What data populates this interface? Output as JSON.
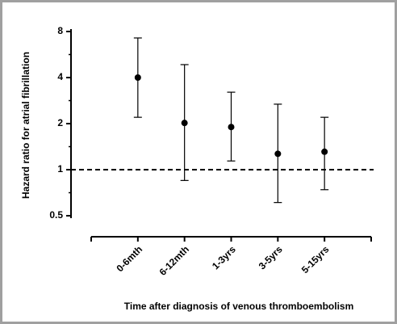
{
  "chart_data": {
    "type": "errorbar",
    "x_label": "Time after diagnosis of venous thromboembolism",
    "y_label": "Hazard ratio for atrial fibrillation",
    "categories": [
      "0-6mth",
      "6-12mth",
      "1-3yrs",
      "3-5yrs",
      "5-15yrs"
    ],
    "values": [
      4.0,
      2.02,
      1.9,
      1.27,
      1.31
    ],
    "lower": [
      2.2,
      0.85,
      1.14,
      0.61,
      0.74
    ],
    "upper": [
      7.26,
      4.86,
      3.21,
      2.68,
      2.2
    ],
    "color": "#000000",
    "log_scale": true,
    "ylim": [
      0.5,
      8
    ],
    "yticks": [
      0.5,
      1,
      2,
      4,
      8
    ],
    "reference_line": 1
  }
}
